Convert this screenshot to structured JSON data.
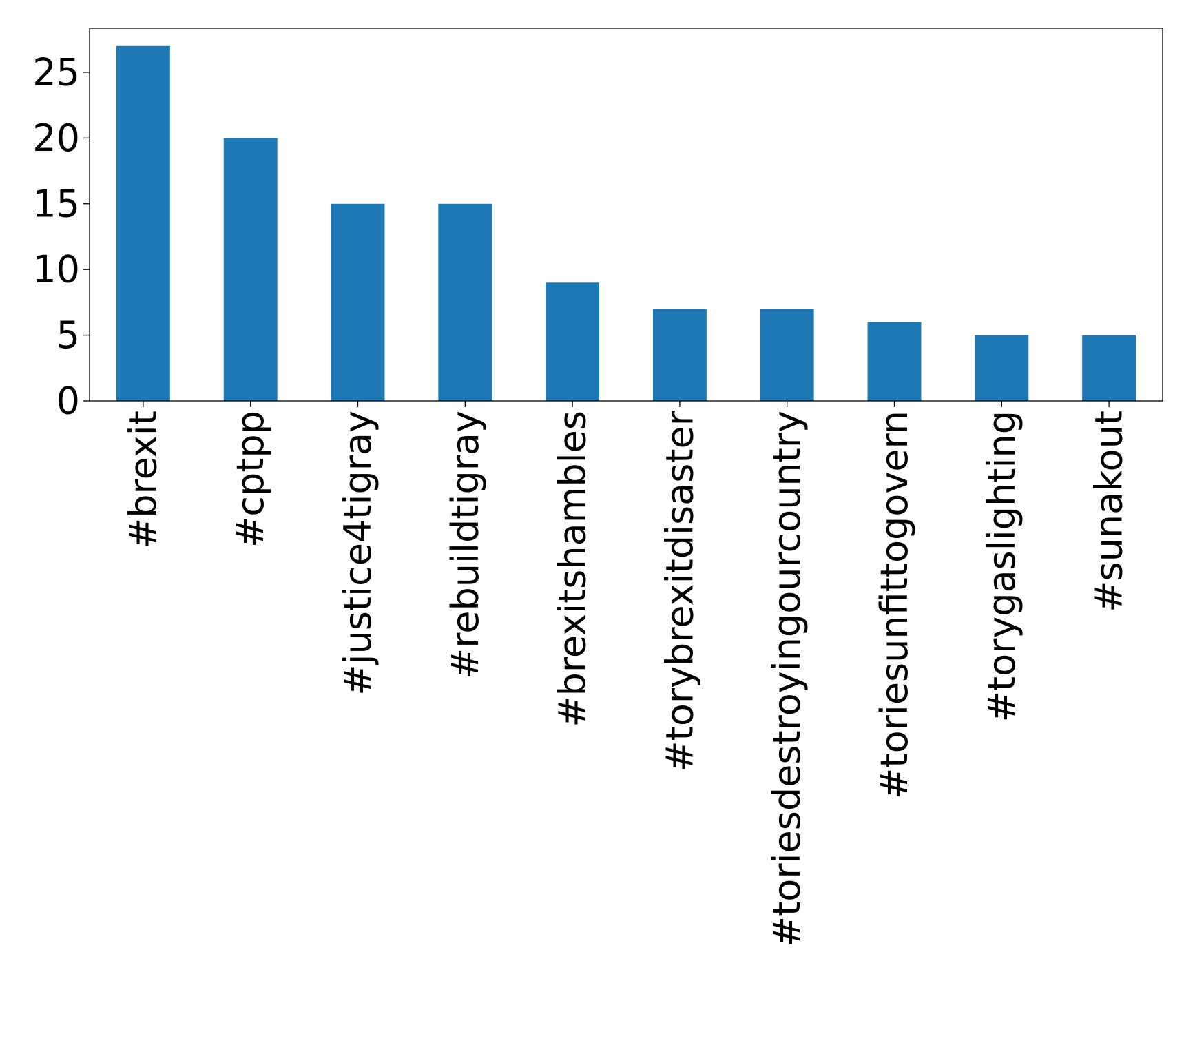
{
  "chart_data": {
    "type": "bar",
    "title": "",
    "xlabel": "",
    "ylabel": "",
    "categories": [
      "#brexit",
      "#cptpp",
      "#justice4tigray",
      "#rebuildtigray",
      "#brexitshambles",
      "#torybrexitdisaster",
      "#toriesdestroyingourcountry",
      "#toriesunfittogovern",
      "#torygaslighting",
      "#sunakout"
    ],
    "values": [
      27,
      20,
      15,
      15,
      9,
      7,
      7,
      6,
      5,
      5
    ],
    "ylim": [
      0,
      28.35
    ],
    "yticks": [
      0,
      5,
      10,
      15,
      20,
      25
    ],
    "bar_color": "#1f77b4",
    "grid": false,
    "legend": false
  }
}
